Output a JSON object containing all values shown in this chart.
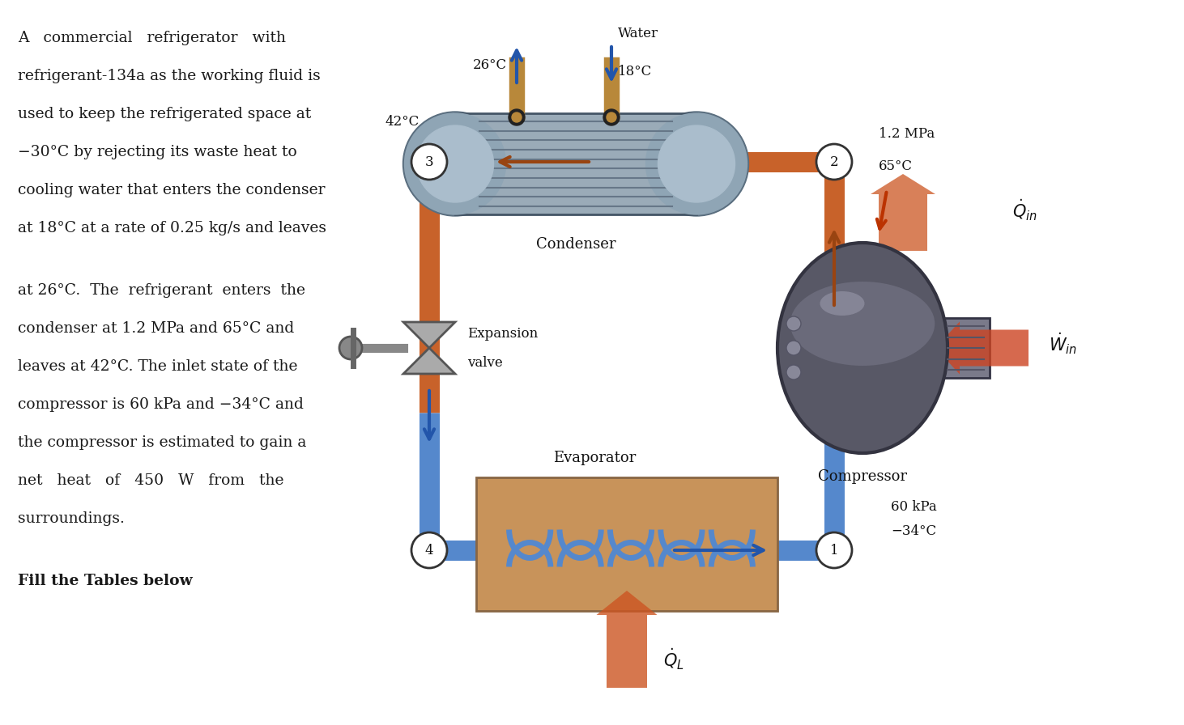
{
  "bg_color": "#ffffff",
  "text_color": "#1a1a1a",
  "left_text_blocks": [
    "A   commercial   refrigerator   with\nrefrigerant-134a as the working fluid is\nused to keep the refrigerated space at\n−30°C by rejecting its waste heat to\ncooling water that enters the condenser\nat 18°C at a rate of 0.25 kg/s and leaves",
    "at 26°C.  The  refrigerant  enters  the\ncondenser at 1.2 MPa and 65°C and\nleaves at 42°C. The inlet state of the\ncompressor is 60 kPa and −34°C and\nthe compressor is estimated to gain a\nnet   heat   of   450   W   from   the\nsurroundings."
  ],
  "bold_line": "Fill the Tables below",
  "pipe_hot_color": "#c8622a",
  "pipe_cold_color": "#5588cc",
  "arrow_blue": "#2255aa",
  "label_fontsize": 12,
  "condenser_body": "#9aabb8",
  "condenser_cap": "#7a8fa0",
  "compressor_body": "#5a5a68",
  "evaporator_body": "#c8935a"
}
